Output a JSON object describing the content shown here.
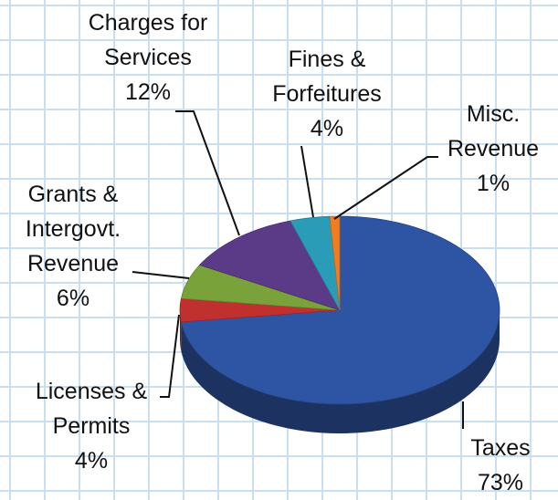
{
  "chart_data": {
    "type": "pie",
    "categories": [
      "Taxes",
      "Licenses & Permits",
      "Grants & Intergovt. Revenue",
      "Charges for Services",
      "Fines & Forfeitures",
      "Misc. Revenue"
    ],
    "values": [
      73,
      4,
      6,
      12,
      4,
      1
    ],
    "value_labels": [
      "73%",
      "4%",
      "6%",
      "12%",
      "4%",
      "1%"
    ],
    "colors": [
      "#2e55a3",
      "#c0302e",
      "#7aa23a",
      "#5b3b88",
      "#2b9cb8",
      "#f07d1e"
    ]
  }
}
